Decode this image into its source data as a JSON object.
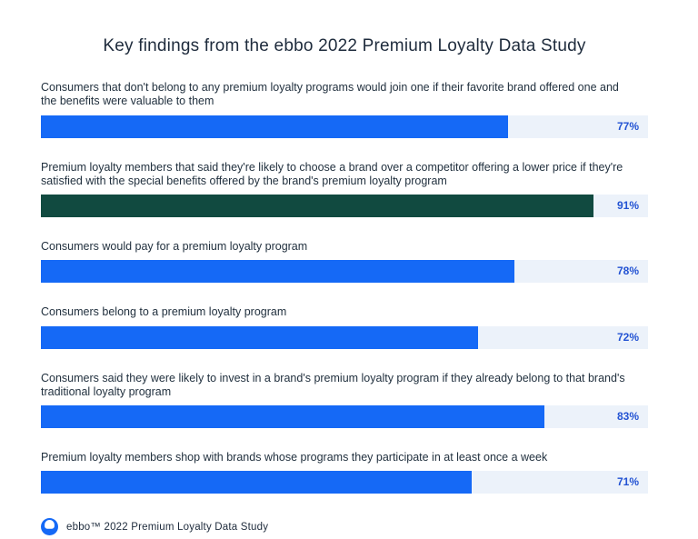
{
  "title": "Key findings from the ebbo 2022 Premium Loyalty Data Study",
  "colors": {
    "bar_blue": "#1569f6",
    "bar_green": "#114a40",
    "track": "#ecf2fa",
    "value_text": "#2353d3",
    "label_text": "#22313f",
    "title_text": "#1e2b3c"
  },
  "chart_data": {
    "type": "bar",
    "orientation": "horizontal",
    "title": "Key findings from the ebbo 2022 Premium Loyalty Data Study",
    "xlim": [
      0,
      100
    ],
    "grid": false,
    "legend": false,
    "categories": [
      "Consumers that don't belong to any premium loyalty programs would join one if their favorite brand offered one and the benefits were valuable to them",
      "Premium loyalty members that said they're likely to choose a brand over a competitor offering a lower price if they're satisfied with the special benefits offered by the brand's premium loyalty program",
      "Consumers would pay for a premium loyalty program",
      "Consumers belong to a premium loyalty program",
      "Consumers said they were likely to invest in a brand's premium loyalty program if they already belong to that brand's traditional loyalty program",
      "Premium loyalty members shop with brands whose programs they participate in at least once a week"
    ],
    "values": [
      77,
      91,
      78,
      72,
      83,
      71
    ],
    "value_labels": [
      "77%",
      "91%",
      "78%",
      "72%",
      "83%",
      "71%"
    ],
    "bar_colors": [
      "#1569f6",
      "#114a40",
      "#1569f6",
      "#1569f6",
      "#1569f6",
      "#1569f6"
    ]
  },
  "footer": {
    "logo_name": "ebbo-logo",
    "text": "ebbo™ 2022 Premium Loyalty Data Study"
  }
}
